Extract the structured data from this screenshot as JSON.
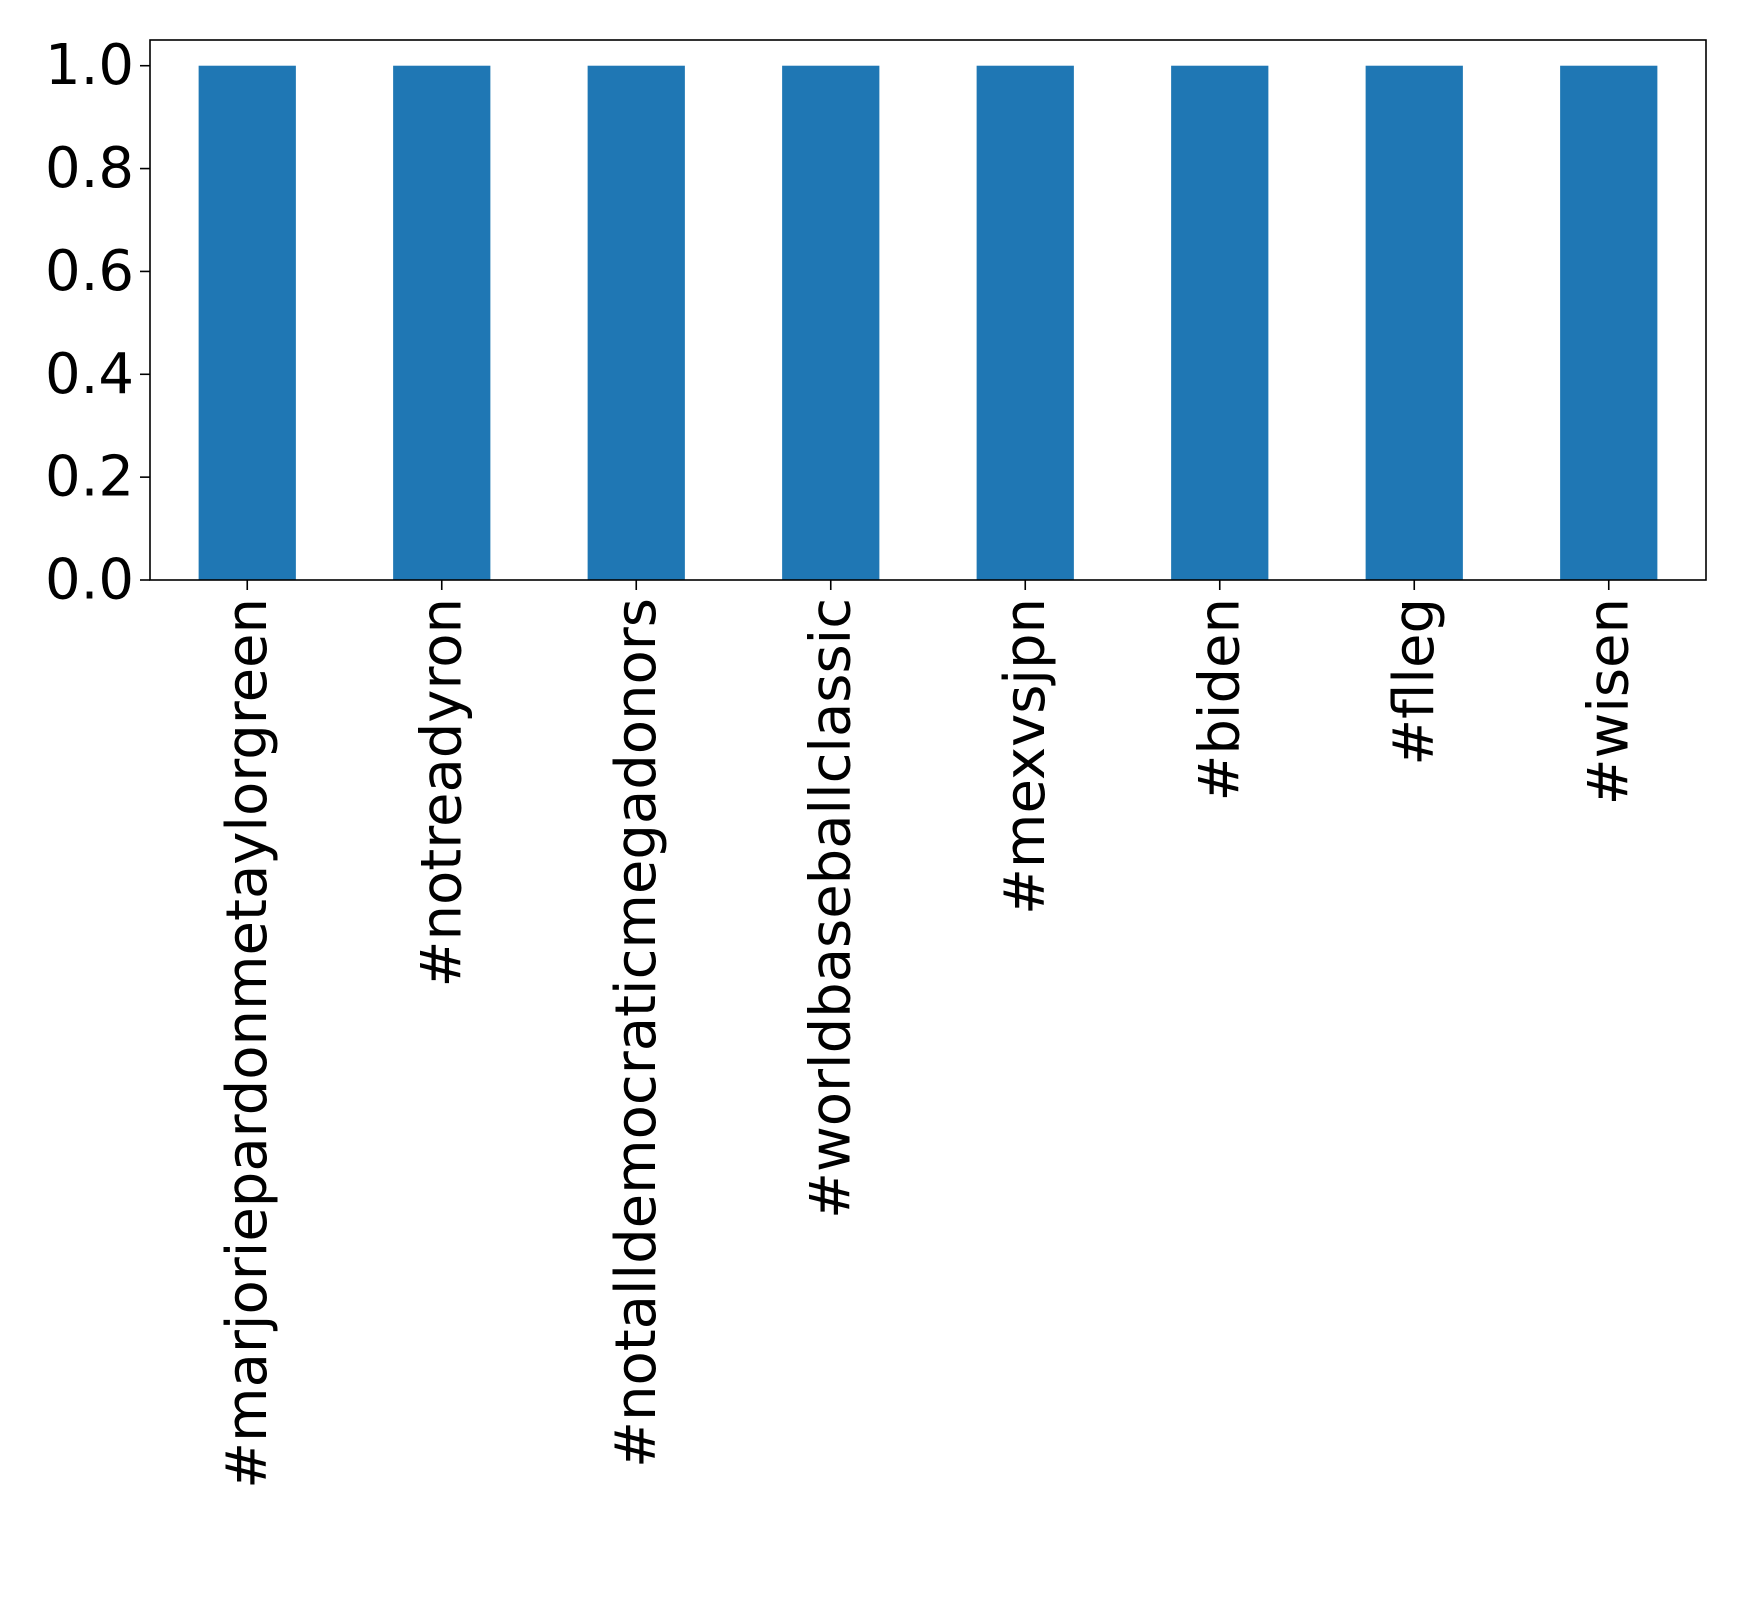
{
  "chart_data": {
    "type": "bar",
    "title": "",
    "xlabel": "",
    "ylabel": "",
    "categories": [
      "#marjoriepardonmetaylorgreen",
      "#notreadyron",
      "#notalldemocraticmegadonors",
      "#worldbaseballclassic",
      "#mexvsjpn",
      "#biden",
      "#flleg",
      "#wisen"
    ],
    "values": [
      1.0,
      1.0,
      1.0,
      1.0,
      1.0,
      1.0,
      1.0,
      1.0
    ],
    "ylim": [
      0,
      1.05
    ],
    "yticks": [
      "0.0",
      "0.2",
      "0.4",
      "0.6",
      "0.8",
      "1.0"
    ],
    "grid": false,
    "legend": "none",
    "bar_color": "#1f77b4"
  }
}
